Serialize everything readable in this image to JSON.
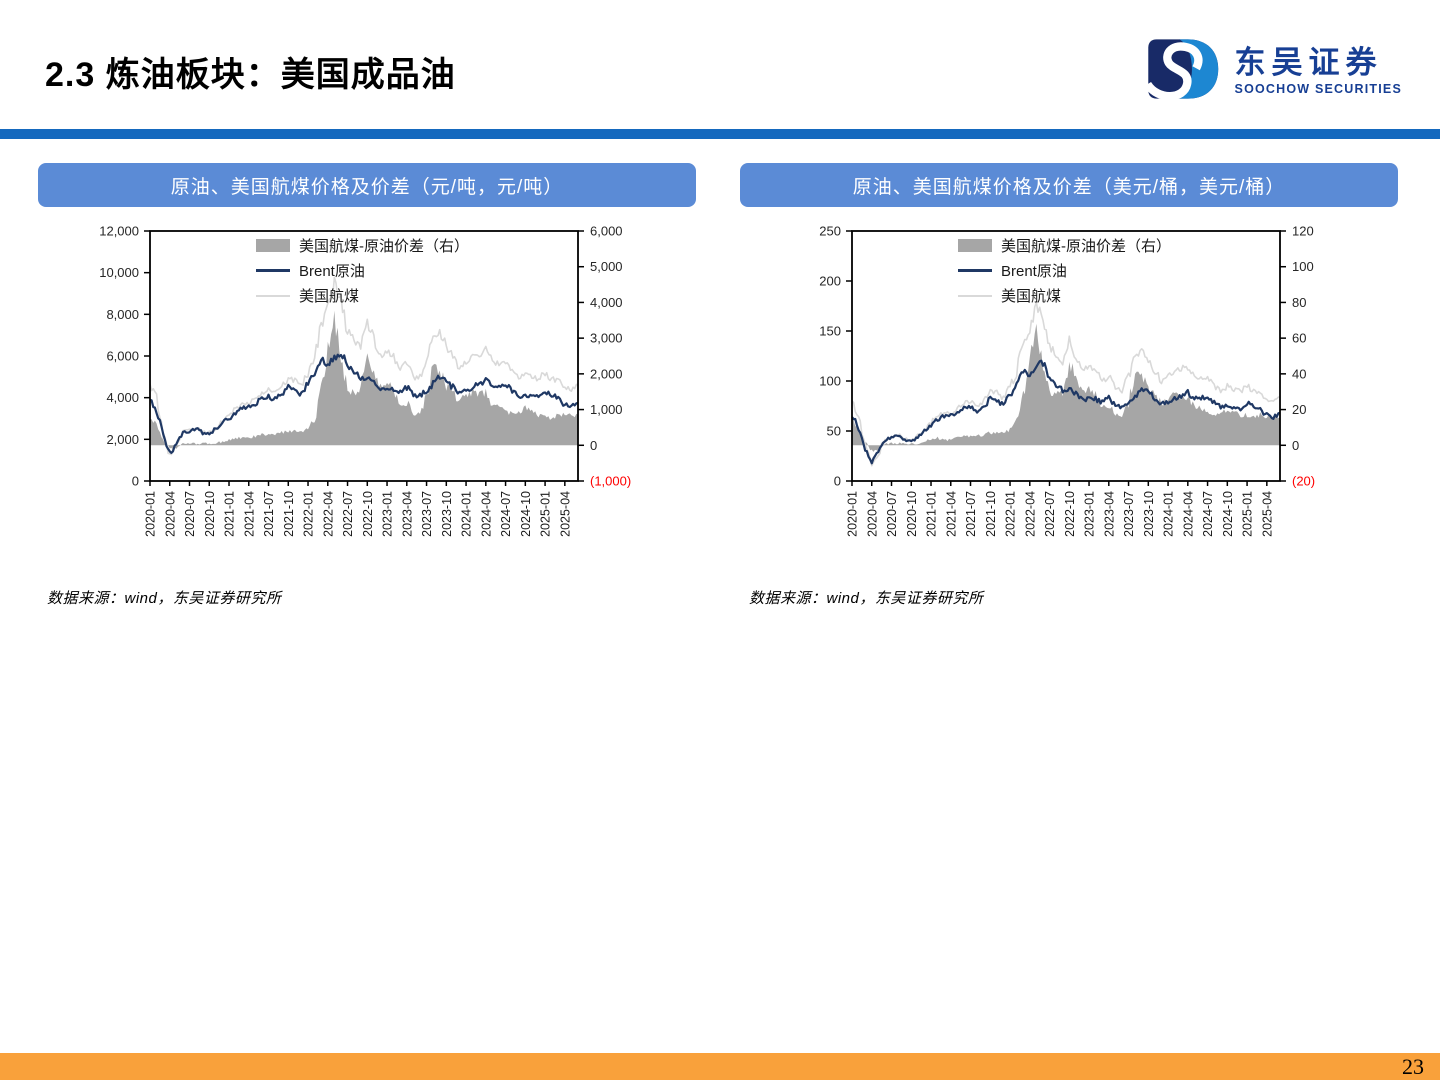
{
  "page": {
    "title": "2.3 炼油板块：美国成品油",
    "page_number": "23"
  },
  "logo": {
    "name_cn": "东吴证券",
    "name_en": "SOOCHOW SECURITIES"
  },
  "source_note": "数据来源：wind，东吴证券研究所",
  "colors": {
    "divider_blue": "#1569BE",
    "panel_header_blue": "#5B8BD6",
    "footer_orange": "#F9A13B",
    "brent_line": "#1F3864",
    "jet_line": "#D9D9D9",
    "spread_area": "#A6A6A6",
    "negative_tick_red": "#FF0000",
    "logo_navy": "#182A67",
    "logo_blue": "#1D87D2"
  },
  "chart_data": [
    {
      "type": "line",
      "title": "原油、美国航煤价格及价差（元/吨，元/吨）",
      "legend": [
        "美国航煤-原油价差（右）",
        "Brent原油",
        "美国航煤"
      ],
      "left_axis": {
        "min": 0,
        "max": 12000,
        "tick_labels": [
          "0",
          "2,000",
          "4,000",
          "6,000",
          "8,000",
          "10,000",
          "12,000"
        ]
      },
      "right_axis": {
        "min": -1000,
        "max": 6000,
        "tick_labels": [
          "(1,000)",
          "0",
          "1,000",
          "2,000",
          "3,000",
          "4,000",
          "5,000",
          "6,000"
        ]
      },
      "x_tick_labels": [
        "2020-01",
        "2020-04",
        "2020-07",
        "2020-10",
        "2021-01",
        "2021-04",
        "2021-07",
        "2021-10",
        "2022-01",
        "2022-04",
        "2022-07",
        "2022-10",
        "2023-01",
        "2023-04",
        "2023-07",
        "2023-10",
        "2024-01",
        "2024-04",
        "2024-07",
        "2024-10",
        "2025-01",
        "2025-04"
      ],
      "months": [
        "2020-01",
        "2020-02",
        "2020-03",
        "2020-04",
        "2020-05",
        "2020-06",
        "2020-07",
        "2020-08",
        "2020-09",
        "2020-10",
        "2020-11",
        "2020-12",
        "2021-01",
        "2021-02",
        "2021-03",
        "2021-04",
        "2021-05",
        "2021-06",
        "2021-07",
        "2021-08",
        "2021-09",
        "2021-10",
        "2021-11",
        "2021-12",
        "2022-01",
        "2022-02",
        "2022-03",
        "2022-04",
        "2022-05",
        "2022-06",
        "2022-07",
        "2022-08",
        "2022-09",
        "2022-10",
        "2022-11",
        "2022-12",
        "2023-01",
        "2023-02",
        "2023-03",
        "2023-04",
        "2023-05",
        "2023-06",
        "2023-07",
        "2023-08",
        "2023-09",
        "2023-10",
        "2023-11",
        "2023-12",
        "2024-01",
        "2024-02",
        "2024-03",
        "2024-04",
        "2024-05",
        "2024-06",
        "2024-07",
        "2024-08",
        "2024-09",
        "2024-10",
        "2024-11",
        "2024-12",
        "2025-01",
        "2025-02",
        "2025-03",
        "2025-04",
        "2025-05",
        "2025-06"
      ],
      "series": [
        {
          "name": "美国航煤-原油价差（右）",
          "axis": "right",
          "style": "area",
          "color": "#A6A6A6",
          "values": [
            750,
            600,
            150,
            -100,
            -100,
            50,
            50,
            50,
            50,
            50,
            50,
            100,
            150,
            200,
            200,
            200,
            250,
            300,
            300,
            300,
            350,
            400,
            400,
            400,
            500,
            700,
            1500,
            2600,
            3550,
            2500,
            1600,
            1450,
            1600,
            2600,
            2000,
            1600,
            1800,
            1550,
            1150,
            1200,
            900,
            850,
            1350,
            2150,
            2100,
            1650,
            1500,
            1200,
            1400,
            1500,
            1450,
            1450,
            1150,
            1050,
            1050,
            850,
            900,
            1050,
            950,
            850,
            900,
            750,
            850,
            850,
            850,
            850
          ]
        },
        {
          "name": "美国航煤",
          "axis": "left",
          "style": "line",
          "color": "#D9D9D9",
          "values": [
            4650,
            4000,
            2250,
            1200,
            1700,
            2400,
            2450,
            2550,
            2350,
            2300,
            2550,
            2900,
            3150,
            3500,
            3700,
            3750,
            3950,
            4250,
            4350,
            4200,
            4500,
            4900,
            4800,
            4550,
            5200,
            5900,
            7500,
            8200,
            9500,
            8600,
            7200,
            6700,
            6500,
            7600,
            6800,
            6000,
            6300,
            6000,
            5400,
            5700,
            5000,
            4900,
            5700,
            6800,
            7100,
            6500,
            6000,
            5400,
            5700,
            6000,
            6100,
            6300,
            5700,
            5600,
            5700,
            5200,
            4900,
            5200,
            5000,
            4900,
            5200,
            4900,
            4800,
            4500,
            4400,
            4600
          ]
        },
        {
          "name": "Brent原油",
          "axis": "left",
          "style": "line",
          "color": "#1F3864",
          "values": [
            3900,
            3400,
            2100,
            1300,
            1800,
            2350,
            2400,
            2500,
            2300,
            2250,
            2500,
            2800,
            3000,
            3300,
            3500,
            3550,
            3700,
            3950,
            4050,
            3900,
            4150,
            4500,
            4400,
            4150,
            4700,
            5200,
            6000,
            5600,
            5950,
            6100,
            5600,
            5250,
            4900,
            5000,
            4800,
            4400,
            4500,
            4450,
            4250,
            4500,
            4100,
            4050,
            4350,
            4650,
            5000,
            4850,
            4500,
            4200,
            4300,
            4500,
            4650,
            4850,
            4550,
            4550,
            4650,
            4350,
            4000,
            4150,
            4050,
            4050,
            4300,
            4150,
            3950,
            3650,
            3550,
            3750
          ]
        }
      ]
    },
    {
      "type": "line",
      "title": "原油、美国航煤价格及价差（美元/桶，美元/桶）",
      "legend": [
        "美国航煤-原油价差（右）",
        "Brent原油",
        "美国航煤"
      ],
      "left_axis": {
        "min": 0,
        "max": 250,
        "tick_labels": [
          "0",
          "50",
          "100",
          "150",
          "200",
          "250"
        ]
      },
      "right_axis": {
        "min": -20,
        "max": 120,
        "tick_labels": [
          "(20)",
          "0",
          "20",
          "40",
          "60",
          "80",
          "100",
          "120"
        ]
      },
      "x_tick_labels": [
        "2020-01",
        "2020-04",
        "2020-07",
        "2020-10",
        "2021-01",
        "2021-04",
        "2021-07",
        "2021-10",
        "2022-01",
        "2022-04",
        "2022-07",
        "2022-10",
        "2023-01",
        "2023-04",
        "2023-07",
        "2023-10",
        "2024-01",
        "2024-04",
        "2024-07",
        "2024-10",
        "2025-01",
        "2025-04"
      ],
      "months": [
        "2020-01",
        "2020-02",
        "2020-03",
        "2020-04",
        "2020-05",
        "2020-06",
        "2020-07",
        "2020-08",
        "2020-09",
        "2020-10",
        "2020-11",
        "2020-12",
        "2021-01",
        "2021-02",
        "2021-03",
        "2021-04",
        "2021-05",
        "2021-06",
        "2021-07",
        "2021-08",
        "2021-09",
        "2021-10",
        "2021-11",
        "2021-12",
        "2022-01",
        "2022-02",
        "2022-03",
        "2022-04",
        "2022-05",
        "2022-06",
        "2022-07",
        "2022-08",
        "2022-09",
        "2022-10",
        "2022-11",
        "2022-12",
        "2023-01",
        "2023-02",
        "2023-03",
        "2023-04",
        "2023-05",
        "2023-06",
        "2023-07",
        "2023-08",
        "2023-09",
        "2023-10",
        "2023-11",
        "2023-12",
        "2024-01",
        "2024-02",
        "2024-03",
        "2024-04",
        "2024-05",
        "2024-06",
        "2024-07",
        "2024-08",
        "2024-09",
        "2024-10",
        "2024-11",
        "2024-12",
        "2025-01",
        "2025-02",
        "2025-03",
        "2025-04",
        "2025-05",
        "2025-06"
      ],
      "series": [
        {
          "name": "美国航煤-原油价差（右）",
          "axis": "right",
          "style": "area",
          "color": "#A6A6A6",
          "values": [
            16,
            9,
            2,
            -3,
            -3,
            1,
            1,
            1,
            1,
            1,
            1,
            2,
            3,
            4,
            3,
            3,
            4,
            5,
            5,
            5,
            6,
            7,
            7,
            7,
            9,
            14,
            28,
            45,
            66,
            40,
            30,
            28,
            30,
            47,
            37,
            29,
            32,
            28,
            22,
            22,
            17,
            16,
            25,
            40,
            39,
            31,
            28,
            23,
            26,
            28,
            27,
            26,
            22,
            20,
            20,
            16,
            17,
            20,
            19,
            17,
            17,
            15,
            17,
            16,
            16,
            16
          ]
        },
        {
          "name": "美国航煤",
          "axis": "left",
          "style": "line",
          "color": "#D9D9D9",
          "values": [
            80,
            64,
            35,
            17,
            27,
            42,
            44,
            46,
            42,
            41,
            45,
            52,
            58,
            66,
            68,
            68,
            72,
            78,
            79,
            75,
            80,
            90,
            88,
            82,
            95,
            108,
            140,
            150,
            178,
            160,
            135,
            125,
            120,
            140,
            125,
            110,
            115,
            110,
            100,
            105,
            92,
            90,
            105,
            125,
            131,
            120,
            110,
            100,
            105,
            110,
            112,
            115,
            105,
            103,
            105,
            95,
            90,
            95,
            92,
            90,
            95,
            90,
            88,
            82,
            80,
            84
          ]
        },
        {
          "name": "Brent原油",
          "axis": "left",
          "style": "line",
          "color": "#1F3864",
          "values": [
            64,
            55,
            33,
            20,
            30,
            41,
            43,
            45,
            41,
            40,
            44,
            50,
            55,
            62,
            65,
            65,
            68,
            73,
            74,
            70,
            74,
            83,
            81,
            75,
            86,
            94,
            112,
            105,
            112,
            120,
            105,
            97,
            90,
            93,
            88,
            81,
            83,
            82,
            78,
            83,
            75,
            74,
            80,
            85,
            92,
            89,
            82,
            77,
            79,
            82,
            85,
            89,
            83,
            83,
            85,
            79,
            73,
            75,
            73,
            73,
            78,
            75,
            71,
            66,
            64,
            68
          ]
        }
      ]
    }
  ]
}
